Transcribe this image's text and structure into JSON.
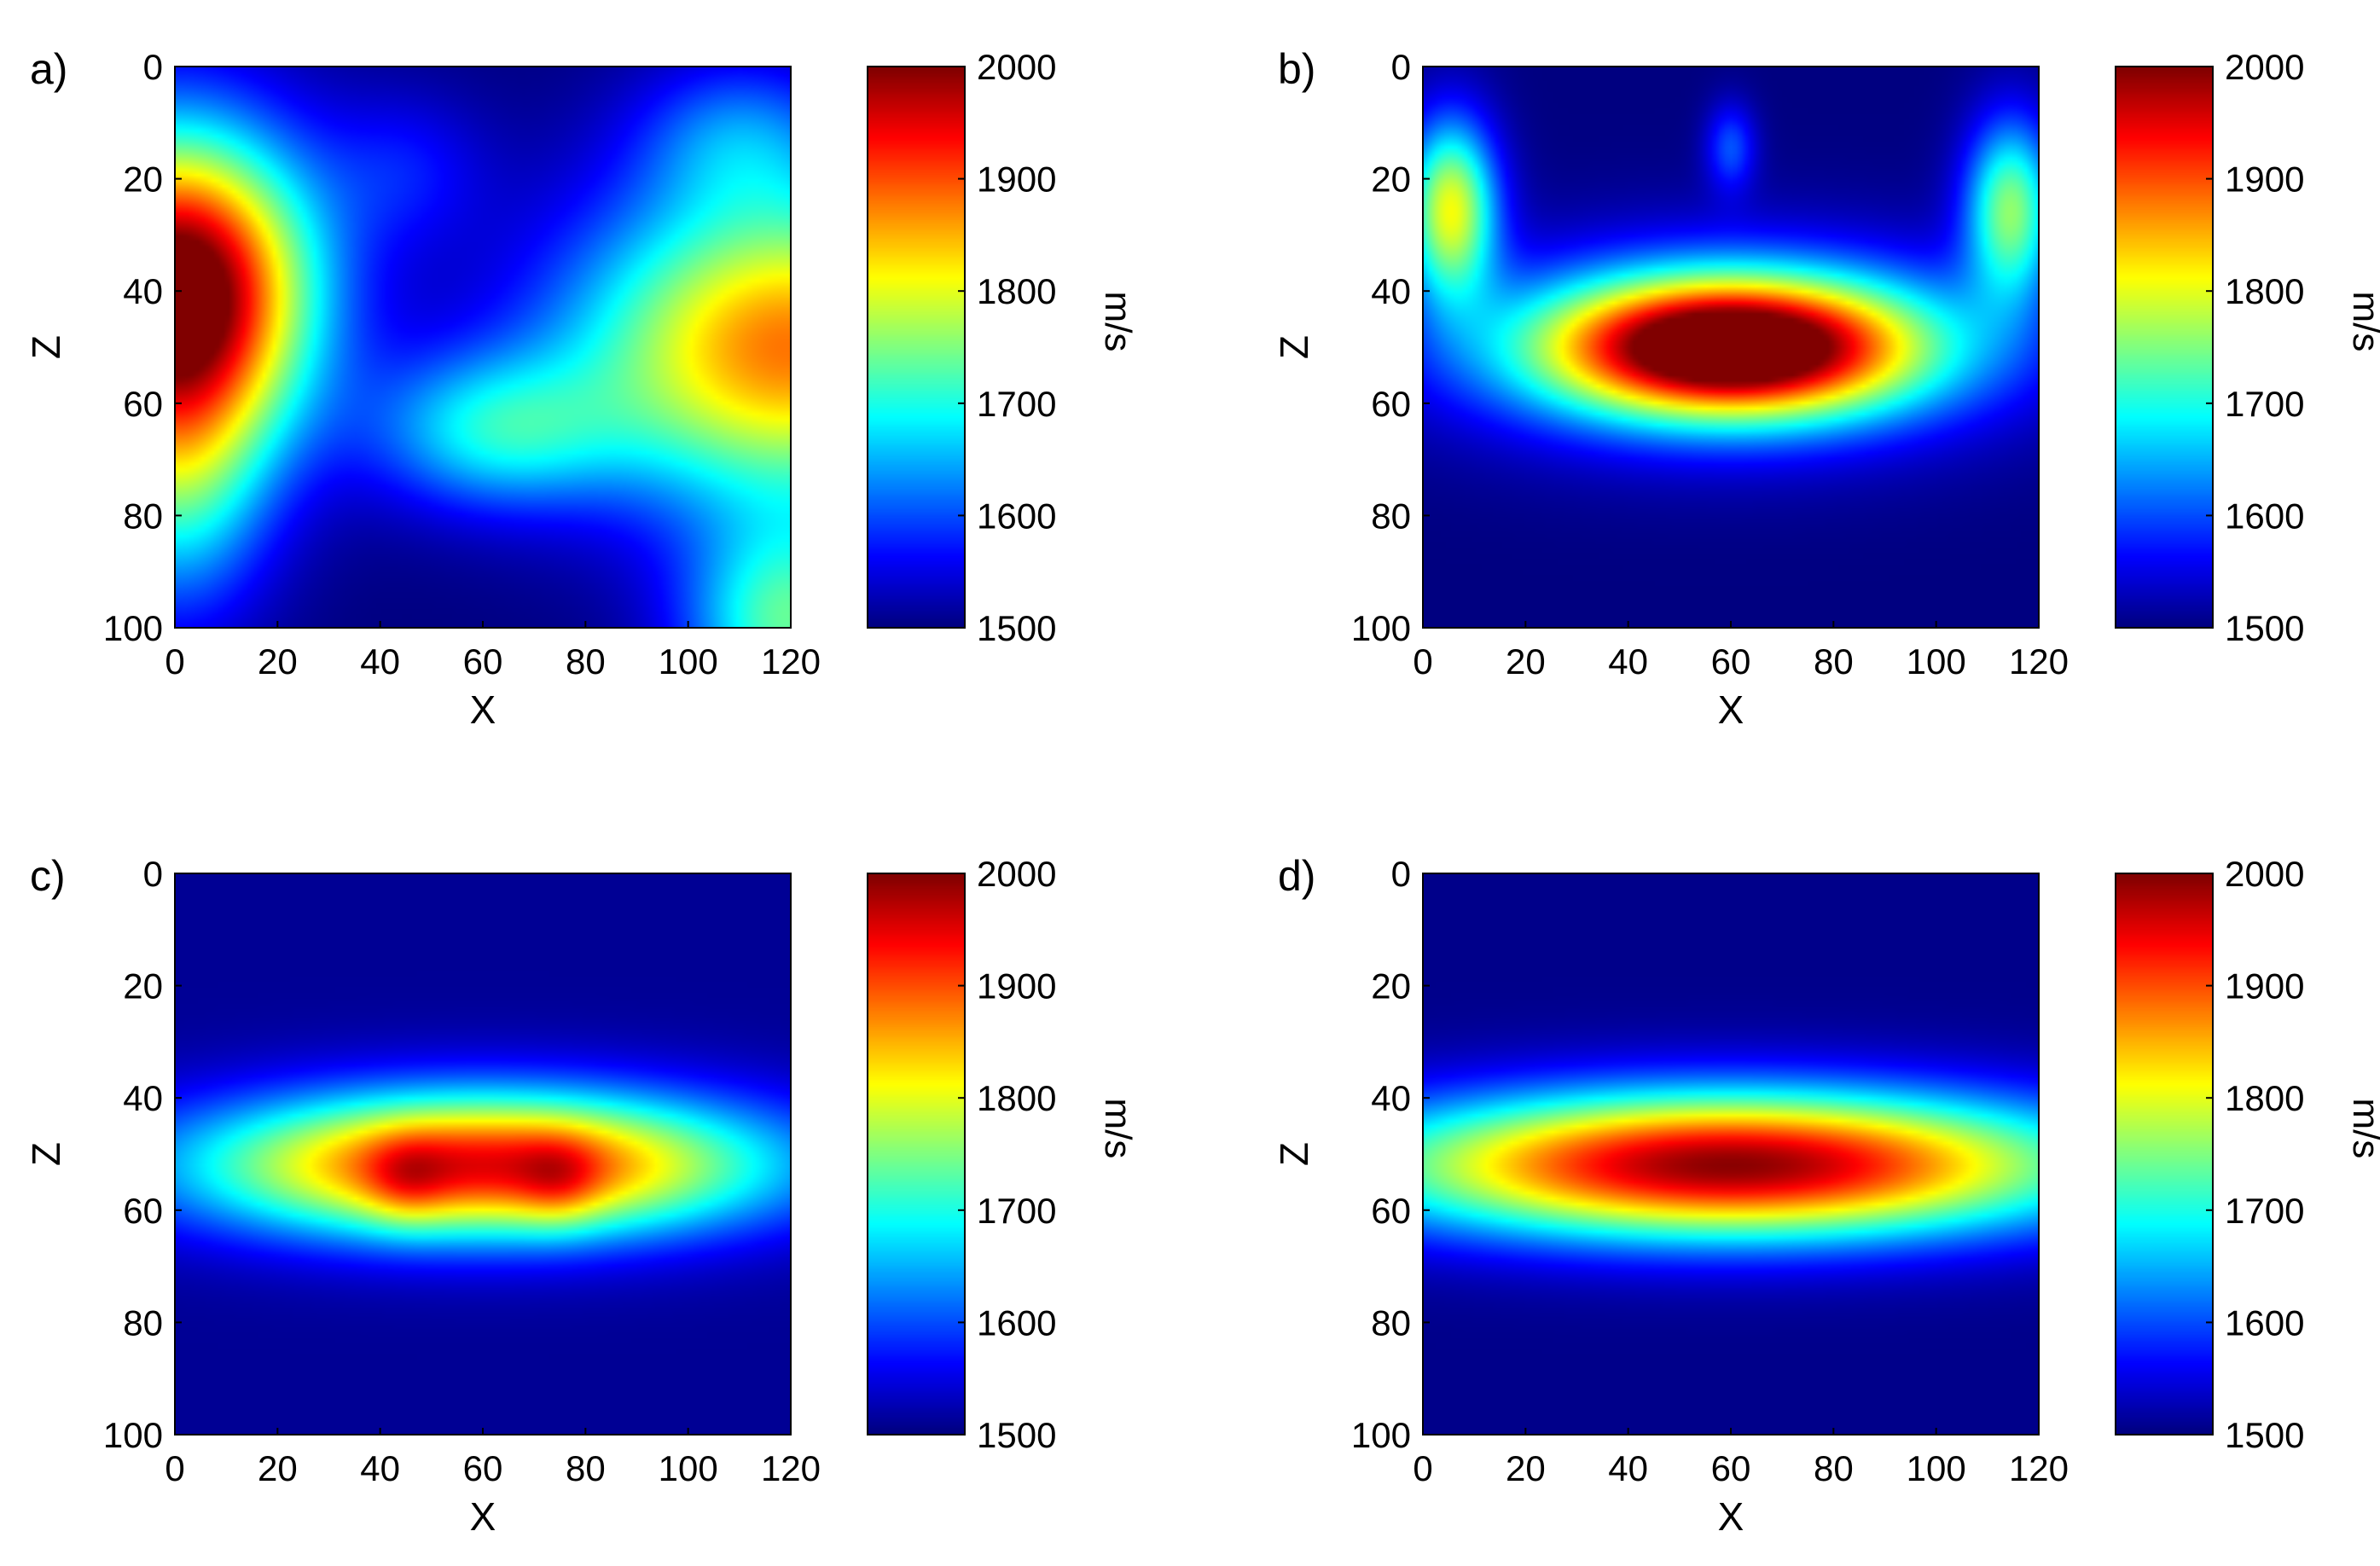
{
  "figure": {
    "panels": [
      "a)",
      "b)",
      "c)",
      "d)"
    ]
  },
  "chart_data": [
    {
      "type": "heatmap",
      "panel_label": "a)",
      "xlabel": "X",
      "ylabel": "Z",
      "xlim": [
        0,
        120
      ],
      "ylim": [
        0,
        100
      ],
      "y_reversed": true,
      "xticks": [
        0,
        20,
        40,
        60,
        80,
        100,
        120
      ],
      "yticks": [
        0,
        20,
        40,
        60,
        80,
        100
      ],
      "colorbar": {
        "label": "m/s",
        "range": [
          1500,
          2000
        ],
        "ticks": [
          1500,
          1600,
          1700,
          1800,
          1900,
          2000
        ],
        "colormap": "jet"
      },
      "field": {
        "background": 1500,
        "blobs": [
          {
            "x": 0,
            "z": 40,
            "rx": 26,
            "rz": 28,
            "amp": 560
          },
          {
            "x": 120,
            "z": 50,
            "rx": 42,
            "rz": 28,
            "amp": 380
          },
          {
            "x": 120,
            "z": 100,
            "rx": 20,
            "rz": 18,
            "amp": 220
          },
          {
            "x": 62,
            "z": 65,
            "rx": 24,
            "rz": 14,
            "amp": 170
          },
          {
            "x": 0,
            "z": 75,
            "rx": 18,
            "rz": 25,
            "amp": 160
          },
          {
            "x": 110,
            "z": 12,
            "rx": 20,
            "rz": 14,
            "amp": 100
          },
          {
            "x": 45,
            "z": 18,
            "rx": 16,
            "rz": 14,
            "amp": 60
          }
        ]
      }
    },
    {
      "type": "heatmap",
      "panel_label": "b)",
      "xlabel": "X",
      "ylabel": "Z",
      "xlim": [
        0,
        120
      ],
      "ylim": [
        0,
        100
      ],
      "y_reversed": true,
      "xticks": [
        0,
        20,
        40,
        60,
        80,
        100,
        120
      ],
      "yticks": [
        0,
        20,
        40,
        60,
        80,
        100
      ],
      "colorbar": {
        "label": "m/s",
        "range": [
          1500,
          2000
        ],
        "ticks": [
          1500,
          1600,
          1700,
          1800,
          1900,
          2000
        ],
        "colormap": "jet"
      },
      "field": {
        "background": 1500,
        "blobs": [
          {
            "x": 60,
            "z": 50,
            "rx": 36,
            "rz": 12,
            "amp": 480
          },
          {
            "x": 60,
            "z": 50,
            "rx": 54,
            "rz": 18,
            "amp": 160
          },
          {
            "x": 5,
            "z": 25,
            "rx": 9,
            "rz": 16,
            "amp": 300
          },
          {
            "x": 115,
            "z": 25,
            "rx": 9,
            "rz": 16,
            "amp": 250
          },
          {
            "x": 60,
            "z": 14,
            "rx": 5,
            "rz": 8,
            "amp": 100
          }
        ]
      }
    },
    {
      "type": "heatmap",
      "panel_label": "c)",
      "xlabel": "X",
      "ylabel": "Z",
      "xlim": [
        0,
        120
      ],
      "ylim": [
        0,
        100
      ],
      "y_reversed": true,
      "xticks": [
        0,
        20,
        40,
        60,
        80,
        100,
        120
      ],
      "yticks": [
        0,
        20,
        40,
        60,
        80,
        100
      ],
      "colorbar": {
        "label": "m/s",
        "range": [
          1500,
          2000
        ],
        "ticks": [
          1500,
          1600,
          1700,
          1800,
          1900,
          2000
        ],
        "colormap": "jet"
      },
      "field": {
        "background": 1510,
        "blobs": [
          {
            "x": 60,
            "z": 52,
            "rx": 56,
            "rz": 13,
            "amp": 440
          },
          {
            "x": 45,
            "z": 55,
            "rx": 8,
            "rz": 8,
            "amp": 60
          },
          {
            "x": 75,
            "z": 55,
            "rx": 8,
            "rz": 8,
            "amp": 60
          }
        ]
      }
    },
    {
      "type": "heatmap",
      "panel_label": "d)",
      "xlabel": "X",
      "ylabel": "Z",
      "xlim": [
        0,
        120
      ],
      "ylim": [
        0,
        100
      ],
      "y_reversed": true,
      "xticks": [
        0,
        20,
        40,
        60,
        80,
        100,
        120
      ],
      "yticks": [
        0,
        20,
        40,
        60,
        80,
        100
      ],
      "colorbar": {
        "label": "m/s",
        "range": [
          1500,
          2000
        ],
        "ticks": [
          1500,
          1600,
          1700,
          1800,
          1900,
          2000
        ],
        "colormap": "jet"
      },
      "field": {
        "background": 1505,
        "blobs": [
          {
            "x": 60,
            "z": 52,
            "rx": 70,
            "rz": 13,
            "amp": 490
          }
        ]
      }
    }
  ]
}
